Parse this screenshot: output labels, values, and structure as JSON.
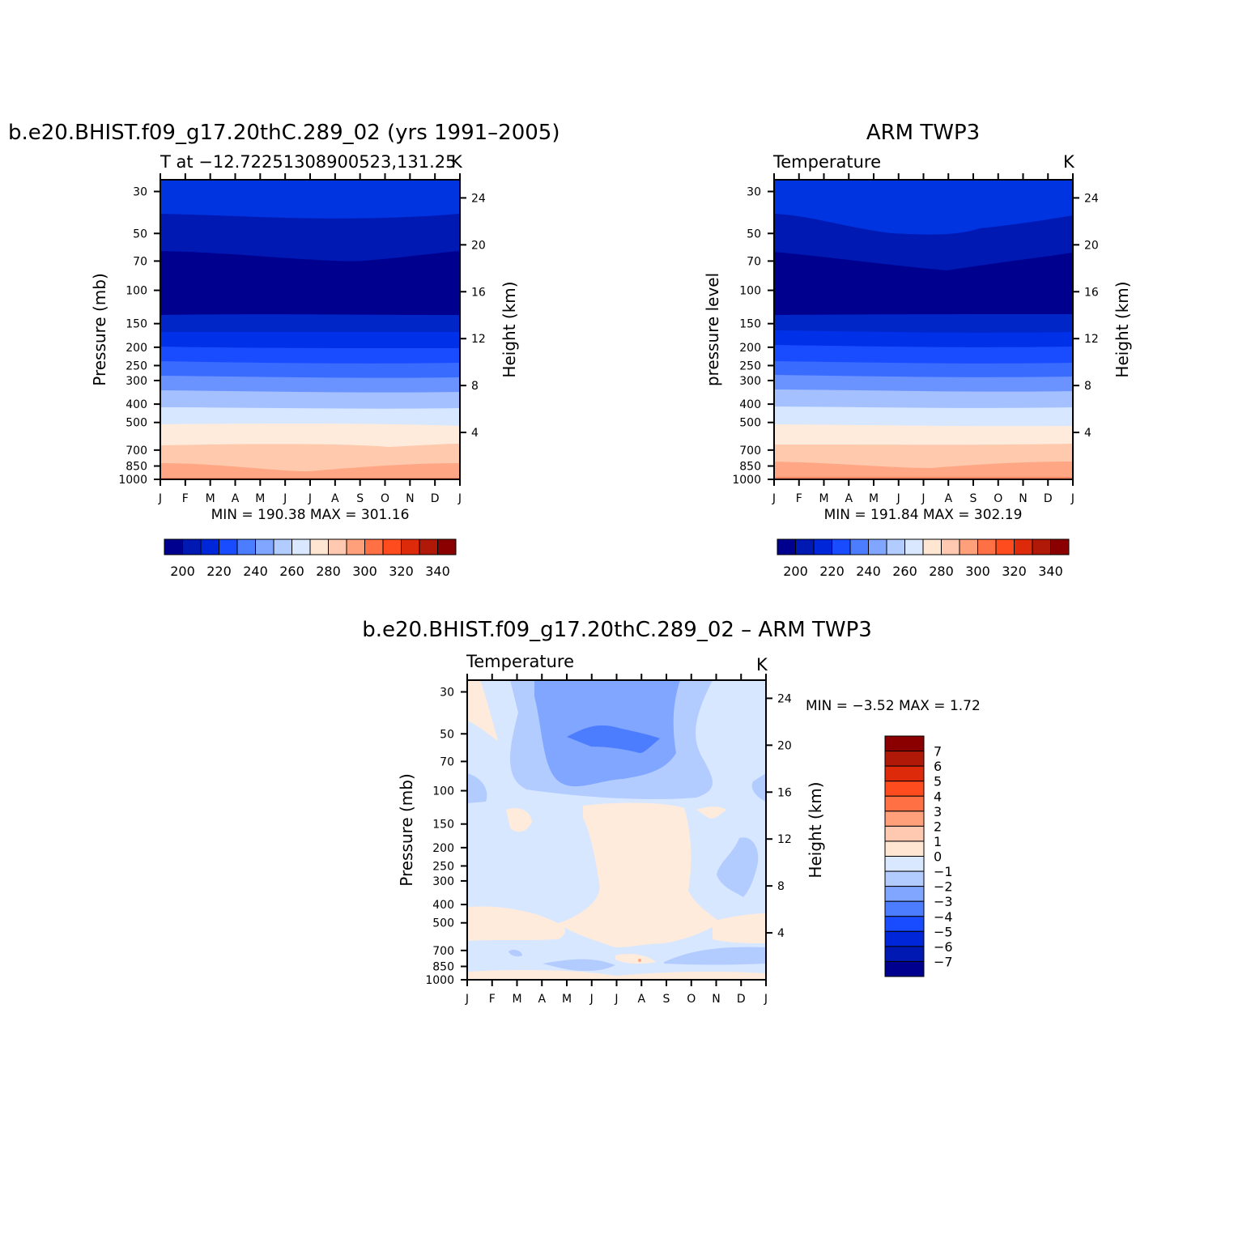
{
  "chart_data": [
    {
      "type": "contour",
      "title": "b.e20.BHIST.f09_g17.20thC.289_02 (yrs 1991–2005)",
      "subtitle_left": "T at −12.72251308900523,131.25",
      "subtitle_right": "K",
      "ylabel": "Pressure (mb)",
      "ylabel_right": "Height (km)",
      "x_ticks": [
        "J",
        "F",
        "M",
        "A",
        "M",
        "J",
        "J",
        "A",
        "S",
        "O",
        "N",
        "D",
        "J"
      ],
      "y_ticks": [
        "30",
        "50",
        "70",
        "100",
        "150",
        "200",
        "250",
        "300",
        "400",
        "500",
        "700",
        "850",
        "1000"
      ],
      "y_right_ticks": [
        "24",
        "20",
        "16",
        "12",
        "8",
        "4"
      ],
      "stats": "MIN = 190.38 MAX = 301.16",
      "colorbar_labels": [
        "200",
        "220",
        "240",
        "260",
        "280",
        "300",
        "320",
        "340"
      ],
      "colors": [
        "#00008f",
        "#0019b3",
        "#0026d9",
        "#1a4cff",
        "#4d7dff",
        "#80a6ff",
        "#b3ccff",
        "#d9e8ff",
        "#ffe6d2",
        "#ffc8b0",
        "#ffa07a",
        "#ff7044",
        "#ff4c1e",
        "#dd2a0a",
        "#b01808",
        "#8a0000"
      ]
    },
    {
      "type": "contour",
      "title": "ARM TWP3",
      "subtitle_left": "Temperature",
      "subtitle_right": "K",
      "ylabel": "pressure level",
      "ylabel_right": "Height (km)",
      "x_ticks": [
        "J",
        "F",
        "M",
        "A",
        "M",
        "J",
        "J",
        "A",
        "S",
        "O",
        "N",
        "D",
        "J"
      ],
      "y_ticks": [
        "30",
        "50",
        "70",
        "100",
        "150",
        "200",
        "250",
        "300",
        "400",
        "500",
        "700",
        "850",
        "1000"
      ],
      "y_right_ticks": [
        "24",
        "20",
        "16",
        "12",
        "8",
        "4"
      ],
      "stats": "MIN = 191.84 MAX = 302.19",
      "colorbar_labels": [
        "200",
        "220",
        "240",
        "260",
        "280",
        "300",
        "320",
        "340"
      ]
    },
    {
      "type": "contour",
      "title": "b.e20.BHIST.f09_g17.20thC.289_02 – ARM TWP3",
      "subtitle_left": "Temperature",
      "subtitle_right": "K",
      "ylabel": "Pressure (mb)",
      "ylabel_right": "Height (km)",
      "x_ticks": [
        "J",
        "F",
        "M",
        "A",
        "M",
        "J",
        "J",
        "A",
        "S",
        "O",
        "N",
        "D",
        "J"
      ],
      "y_ticks": [
        "30",
        "50",
        "70",
        "100",
        "150",
        "200",
        "250",
        "300",
        "400",
        "500",
        "700",
        "850",
        "1000"
      ],
      "y_right_ticks": [
        "24",
        "20",
        "16",
        "12",
        "8",
        "4"
      ],
      "stats": "MIN = −3.52 MAX = 1.72",
      "colorbar_labels": [
        "7",
        "6",
        "5",
        "4",
        "3",
        "2",
        "1",
        "0",
        "−1",
        "−2",
        "−3",
        "−4",
        "−5",
        "−6",
        "−7"
      ],
      "colors": [
        "#8a0000",
        "#b01808",
        "#dd2a0a",
        "#ff4c1e",
        "#ff7044",
        "#ffa07a",
        "#ffc8b0",
        "#ffe6d2",
        "#d9e8ff",
        "#b3ccff",
        "#80a6ff",
        "#4d7dff",
        "#1a4cff",
        "#0026d9",
        "#0019b3",
        "#00008f"
      ]
    }
  ]
}
